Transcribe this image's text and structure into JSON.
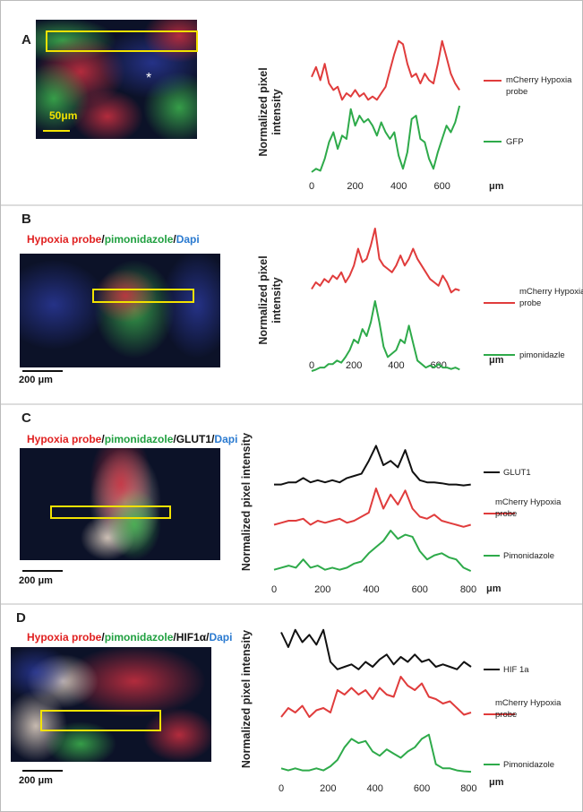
{
  "chart_data": [
    {
      "type": "line",
      "label": "A",
      "image_annotation": "*",
      "scale_label": "50μm",
      "scale_color": "#f2e200",
      "ylabel": "Normalized pixel intensity",
      "xlabel": "μm",
      "x": [
        0,
        20,
        40,
        60,
        80,
        100,
        120,
        140,
        160,
        180,
        200,
        220,
        240,
        260,
        280,
        300,
        320,
        340,
        360,
        380,
        400,
        420,
        440,
        460,
        480,
        500,
        520,
        540,
        560,
        580,
        600,
        620,
        640,
        660,
        680
      ],
      "xlim": [
        0,
        700
      ],
      "xticks": [
        0,
        200,
        400,
        600
      ],
      "ylim": [
        0,
        1
      ],
      "series": [
        {
          "name": "mCherry Hypoxia probe",
          "color": "#e03c3c",
          "values": [
            0.4,
            0.55,
            0.35,
            0.6,
            0.3,
            0.2,
            0.25,
            0.05,
            0.15,
            0.1,
            0.2,
            0.1,
            0.15,
            0.05,
            0.1,
            0.05,
            0.15,
            0.25,
            0.5,
            0.75,
            0.95,
            0.9,
            0.6,
            0.4,
            0.45,
            0.3,
            0.45,
            0.35,
            0.3,
            0.6,
            0.95,
            0.7,
            0.45,
            0.3,
            0.2
          ]
        },
        {
          "name": "GFP",
          "color": "#2eaa4a",
          "values": [
            0.0,
            0.05,
            0.02,
            0.2,
            0.45,
            0.6,
            0.35,
            0.55,
            0.5,
            0.95,
            0.7,
            0.85,
            0.75,
            0.8,
            0.7,
            0.55,
            0.75,
            0.6,
            0.5,
            0.6,
            0.25,
            0.05,
            0.3,
            0.8,
            0.85,
            0.5,
            0.45,
            0.2,
            0.05,
            0.3,
            0.5,
            0.7,
            0.6,
            0.75,
            1.0
          ]
        }
      ]
    },
    {
      "type": "line",
      "label": "B",
      "caption": [
        "Hypoxia probe",
        "/",
        "pimonidazole",
        "/",
        "Dapi"
      ],
      "caption_colors": [
        "#e02020",
        "#111111",
        "#20a040",
        "#111111",
        "#2a7ad0"
      ],
      "scale_label": "200 μm",
      "scale_color": "#111111",
      "ylabel": "Normalized pixel intensity",
      "xlabel": "μm",
      "x": [
        0,
        20,
        40,
        60,
        80,
        100,
        120,
        140,
        160,
        180,
        200,
        220,
        240,
        260,
        280,
        300,
        320,
        340,
        360,
        380,
        400,
        420,
        440,
        460,
        480,
        500,
        520,
        540,
        560,
        580,
        600,
        620,
        640,
        660,
        680,
        700
      ],
      "xlim": [
        0,
        720
      ],
      "xticks": [
        0,
        200,
        400,
        600
      ],
      "ylim": [
        0,
        1
      ],
      "series": [
        {
          "name": "mCherry Hypoxia probe",
          "color": "#e03c3c",
          "values": [
            0.1,
            0.2,
            0.15,
            0.25,
            0.2,
            0.3,
            0.25,
            0.35,
            0.2,
            0.3,
            0.45,
            0.7,
            0.5,
            0.55,
            0.75,
            1.0,
            0.55,
            0.45,
            0.4,
            0.35,
            0.45,
            0.6,
            0.45,
            0.55,
            0.7,
            0.55,
            0.45,
            0.35,
            0.25,
            0.2,
            0.15,
            0.3,
            0.2,
            0.05,
            0.1,
            0.08
          ]
        },
        {
          "name": "pimonidazle",
          "color": "#2eaa4a",
          "values": [
            0,
            0.02,
            0.05,
            0.05,
            0.1,
            0.1,
            0.15,
            0.12,
            0.2,
            0.3,
            0.45,
            0.4,
            0.6,
            0.5,
            0.7,
            1.0,
            0.7,
            0.35,
            0.2,
            0.25,
            0.3,
            0.45,
            0.4,
            0.65,
            0.4,
            0.15,
            0.1,
            0.05,
            0.08,
            0.05,
            0.1,
            0.05,
            0.05,
            0.03,
            0.05,
            0.02
          ]
        }
      ]
    },
    {
      "type": "line",
      "label": "C",
      "caption": [
        "Hypoxia probe",
        "/",
        "pimonidazole",
        "/",
        "GLUT1",
        "/",
        "Dapi"
      ],
      "caption_colors": [
        "#e02020",
        "#111111",
        "#20a040",
        "#111111",
        "#111111",
        "#111111",
        "#2a7ad0"
      ],
      "scale_label": "200 μm",
      "scale_color": "#111111",
      "ylabel": "Normalized pixel intensity",
      "xlabel": "μm",
      "x": [
        0,
        30,
        60,
        90,
        120,
        150,
        180,
        210,
        240,
        270,
        300,
        330,
        360,
        390,
        420,
        450,
        480,
        510,
        540,
        570,
        600,
        630,
        660,
        690,
        720,
        750,
        780,
        810
      ],
      "xlim": [
        0,
        830
      ],
      "xticks": [
        0,
        200,
        400,
        600,
        800
      ],
      "ylim": [
        0,
        1
      ],
      "series": [
        {
          "name": "GLUT1",
          "color": "#111111",
          "values": [
            0.05,
            0.05,
            0.1,
            0.1,
            0.2,
            0.1,
            0.15,
            0.1,
            0.15,
            0.1,
            0.2,
            0.25,
            0.3,
            0.6,
            0.95,
            0.5,
            0.6,
            0.45,
            0.85,
            0.35,
            0.15,
            0.1,
            0.1,
            0.08,
            0.05,
            0.05,
            0.03,
            0.05
          ]
        },
        {
          "name": "mCherry Hypoxia probe",
          "color": "#e03c3c",
          "values": [
            0.1,
            0.15,
            0.2,
            0.2,
            0.25,
            0.1,
            0.2,
            0.15,
            0.2,
            0.25,
            0.15,
            0.2,
            0.3,
            0.4,
            1.0,
            0.5,
            0.85,
            0.6,
            0.95,
            0.5,
            0.3,
            0.25,
            0.35,
            0.2,
            0.15,
            0.1,
            0.05,
            0.1
          ]
        },
        {
          "name": "Pimonidazole",
          "color": "#2eaa4a",
          "values": [
            0.05,
            0.1,
            0.15,
            0.1,
            0.3,
            0.1,
            0.15,
            0.05,
            0.1,
            0.05,
            0.1,
            0.2,
            0.25,
            0.45,
            0.6,
            0.75,
            1.0,
            0.8,
            0.9,
            0.85,
            0.5,
            0.3,
            0.4,
            0.45,
            0.35,
            0.3,
            0.1,
            0.02
          ]
        }
      ]
    },
    {
      "type": "line",
      "label": "D",
      "caption": [
        "Hypoxia probe",
        "/",
        "pimonidazole",
        "/",
        "HIF1α",
        "/",
        "Dapi"
      ],
      "caption_colors": [
        "#e02020",
        "#111111",
        "#20a040",
        "#111111",
        "#111111",
        "#111111",
        "#2a7ad0"
      ],
      "scale_label": "200 μm",
      "scale_color": "#111111",
      "ylabel": "Normalized pixel intensity",
      "xlabel": "μm",
      "x": [
        0,
        30,
        60,
        90,
        120,
        150,
        180,
        210,
        240,
        270,
        300,
        330,
        360,
        390,
        420,
        450,
        480,
        510,
        540,
        570,
        600,
        630,
        660,
        690,
        720,
        750,
        780,
        810
      ],
      "xlim": [
        0,
        810
      ],
      "xticks": [
        0,
        200,
        400,
        600,
        800
      ],
      "ylim": [
        0,
        1
      ],
      "series": [
        {
          "name": "HIF 1a",
          "color": "#111111",
          "values": [
            0.9,
            0.6,
            0.95,
            0.7,
            0.85,
            0.65,
            0.95,
            0.3,
            0.15,
            0.2,
            0.25,
            0.15,
            0.3,
            0.2,
            0.35,
            0.45,
            0.25,
            0.4,
            0.3,
            0.45,
            0.3,
            0.35,
            0.2,
            0.25,
            0.2,
            0.15,
            0.3,
            0.2
          ]
        },
        {
          "name": "mCherry Hypoxia probe",
          "color": "#e03c3c",
          "values": [
            0.1,
            0.3,
            0.2,
            0.35,
            0.1,
            0.25,
            0.3,
            0.2,
            0.7,
            0.6,
            0.75,
            0.6,
            0.7,
            0.5,
            0.75,
            0.6,
            0.55,
            1.0,
            0.8,
            0.7,
            0.85,
            0.55,
            0.5,
            0.4,
            0.45,
            0.3,
            0.15,
            0.2
          ]
        },
        {
          "name": "Pimonidazole",
          "color": "#2eaa4a",
          "values": [
            0.1,
            0.05,
            0.1,
            0.05,
            0.05,
            0.1,
            0.05,
            0.15,
            0.3,
            0.6,
            0.8,
            0.7,
            0.75,
            0.5,
            0.4,
            0.55,
            0.45,
            0.35,
            0.5,
            0.6,
            0.8,
            0.9,
            0.2,
            0.1,
            0.1,
            0.05,
            0.03,
            0.02
          ]
        }
      ]
    }
  ]
}
